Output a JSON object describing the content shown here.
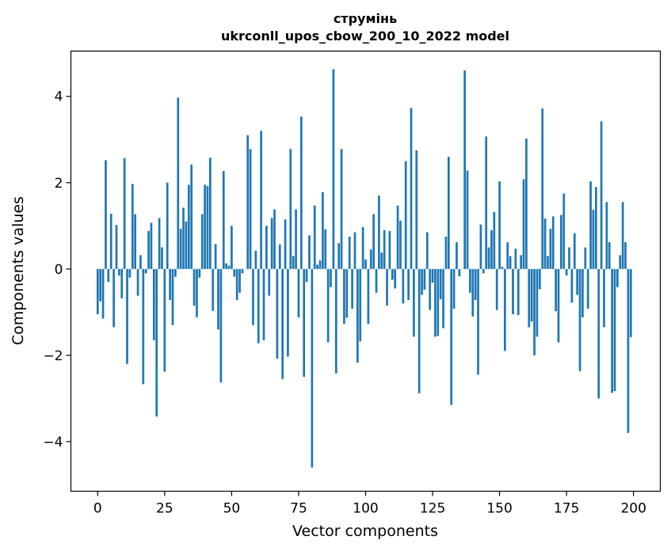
{
  "chart_data": {
    "type": "bar",
    "title": "струмінь",
    "subtitle": "ukrconll_upos_cbow_200_10_2022 model",
    "xlabel": "Vector components",
    "ylabel": "Components values",
    "xlim": [
      -10,
      210
    ],
    "ylim": [
      -5.15,
      5.05
    ],
    "xticks": [
      0,
      25,
      50,
      75,
      100,
      125,
      150,
      175,
      200
    ],
    "yticks": [
      -4,
      -2,
      0,
      2,
      4
    ],
    "ytick_labels": [
      "−4",
      "−2",
      "0",
      "2",
      "4"
    ],
    "bar_color": "#1f77b4",
    "grid": false,
    "values": [
      -1.05,
      -0.75,
      -1.15,
      2.52,
      -0.3,
      1.28,
      -1.35,
      1.02,
      -0.15,
      -0.68,
      2.57,
      -2.2,
      -0.2,
      1.97,
      1.27,
      -0.62,
      0.32,
      -2.67,
      -0.1,
      0.88,
      1.07,
      -1.65,
      -3.42,
      1.18,
      0.5,
      -2.38,
      2.0,
      -0.72,
      -1.3,
      -0.18,
      3.97,
      0.93,
      1.42,
      1.1,
      1.95,
      2.42,
      -0.85,
      -1.12,
      -0.2,
      1.27,
      1.95,
      1.92,
      2.58,
      -0.97,
      0.58,
      -1.4,
      -2.63,
      2.27,
      0.13,
      0.08,
      1.0,
      -0.18,
      -0.72,
      -0.55,
      -0.1,
      0.0,
      3.1,
      2.78,
      -1.3,
      0.42,
      -1.72,
      3.2,
      -1.65,
      1.0,
      -0.62,
      1.18,
      1.38,
      -2.08,
      0.57,
      -2.55,
      1.15,
      -2.03,
      2.78,
      0.3,
      1.38,
      -1.12,
      3.53,
      -2.5,
      -0.3,
      0.78,
      -4.6,
      1.47,
      0.1,
      0.2,
      1.78,
      0.92,
      -1.7,
      -0.42,
      4.63,
      -2.42,
      0.6,
      2.78,
      -1.27,
      -1.13,
      0.75,
      -0.92,
      0.85,
      -2.17,
      -1.68,
      0.97,
      0.22,
      -1.27,
      0.45,
      1.27,
      -0.55,
      1.7,
      0.38,
      0.9,
      -0.85,
      0.88,
      -0.25,
      -0.45,
      1.47,
      1.12,
      -0.8,
      2.5,
      -0.72,
      3.73,
      -1.57,
      2.75,
      -2.88,
      -0.6,
      -0.48,
      0.85,
      -0.95,
      -0.32,
      -1.57,
      -1.55,
      -0.7,
      -1.37,
      0.75,
      2.6,
      -3.15,
      -0.92,
      0.62,
      -0.17,
      0.0,
      4.6,
      2.28,
      -0.55,
      -1.1,
      -0.72,
      -2.45,
      1.03,
      -0.1,
      3.07,
      0.5,
      0.9,
      1.32,
      -0.95,
      2.03,
      0.05,
      -1.9,
      0.62,
      0.3,
      -1.05,
      0.47,
      -1.07,
      0.32,
      2.08,
      3.02,
      -1.35,
      -1.22,
      -2.0,
      -1.57,
      -0.47,
      3.72,
      1.17,
      0.3,
      0.93,
      1.22,
      -0.98,
      -1.7,
      1.25,
      1.75,
      -0.15,
      0.5,
      -0.78,
      0.83,
      -0.6,
      -2.37,
      -1.12,
      0.5,
      -0.92,
      2.03,
      1.37,
      1.9,
      -3.0,
      3.42,
      -1.35,
      1.55,
      0.62,
      -2.87,
      -2.83,
      -0.42,
      0.32,
      1.55,
      0.62,
      -3.8,
      -1.58
    ]
  }
}
